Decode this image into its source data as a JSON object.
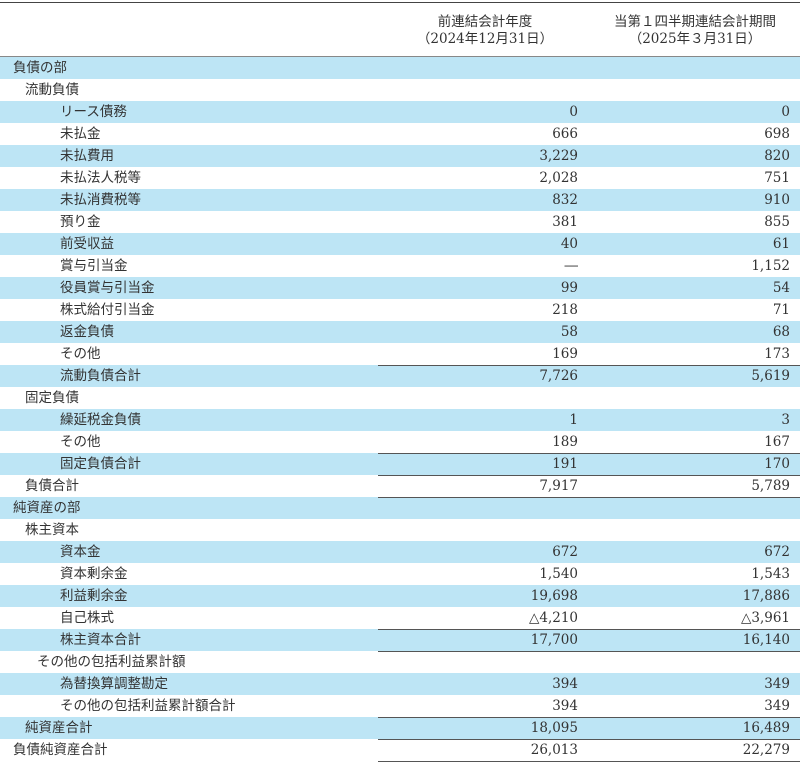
{
  "header": {
    "col1_line1": "前連結会計年度",
    "col1_line2": "（2024年12月31日）",
    "col2_line1": "当第１四半期連結会計期間",
    "col2_line2": "（2025年３月31日）"
  },
  "rows": [
    {
      "label": "負債の部",
      "indent": 0,
      "v1": "",
      "v2": ""
    },
    {
      "label": "流動負債",
      "indent": 1,
      "v1": "",
      "v2": ""
    },
    {
      "label": "リース債務",
      "indent": 2,
      "v1": "0",
      "v2": "0"
    },
    {
      "label": "未払金",
      "indent": 2,
      "v1": "666",
      "v2": "698"
    },
    {
      "label": "未払費用",
      "indent": 2,
      "v1": "3,229",
      "v2": "820"
    },
    {
      "label": "未払法人税等",
      "indent": 2,
      "v1": "2,028",
      "v2": "751"
    },
    {
      "label": "未払消費税等",
      "indent": 2,
      "v1": "832",
      "v2": "910"
    },
    {
      "label": "預り金",
      "indent": 2,
      "v1": "381",
      "v2": "855"
    },
    {
      "label": "前受収益",
      "indent": 2,
      "v1": "40",
      "v2": "61"
    },
    {
      "label": "賞与引当金",
      "indent": 2,
      "v1": "―",
      "v2": "1,152"
    },
    {
      "label": "役員賞与引当金",
      "indent": 2,
      "v1": "99",
      "v2": "54"
    },
    {
      "label": "株式給付引当金",
      "indent": 2,
      "v1": "218",
      "v2": "71"
    },
    {
      "label": "返金負債",
      "indent": 2,
      "v1": "58",
      "v2": "68"
    },
    {
      "label": "その他",
      "indent": 2,
      "v1": "169",
      "v2": "173"
    },
    {
      "label": "流動負債合計",
      "indent": 2,
      "v1": "7,726",
      "v2": "5,619",
      "total": true
    },
    {
      "label": "固定負債",
      "indent": 1,
      "v1": "",
      "v2": ""
    },
    {
      "label": "繰延税金負債",
      "indent": 2,
      "v1": "1",
      "v2": "3"
    },
    {
      "label": "その他",
      "indent": 2,
      "v1": "189",
      "v2": "167"
    },
    {
      "label": "固定負債合計",
      "indent": 2,
      "v1": "191",
      "v2": "170",
      "total": true
    },
    {
      "label": "負債合計",
      "indent": 1,
      "v1": "7,917",
      "v2": "5,789",
      "total": true
    },
    {
      "label": "純資産の部",
      "indent": 0,
      "v1": "",
      "v2": "",
      "total": true
    },
    {
      "label": "株主資本",
      "indent": 1,
      "v1": "",
      "v2": ""
    },
    {
      "label": "資本金",
      "indent": 2,
      "v1": "672",
      "v2": "672"
    },
    {
      "label": "資本剰余金",
      "indent": 2,
      "v1": "1,540",
      "v2": "1,543"
    },
    {
      "label": "利益剰余金",
      "indent": 2,
      "v1": "19,698",
      "v2": "17,886"
    },
    {
      "label": "自己株式",
      "indent": 2,
      "v1": "△4,210",
      "v2": "△3,961"
    },
    {
      "label": "株主資本合計",
      "indent": 2,
      "v1": "17,700",
      "v2": "16,140",
      "total": true
    },
    {
      "label": "その他の包括利益累計額",
      "indent": 3,
      "v1": "",
      "v2": "",
      "total": true
    },
    {
      "label": "為替換算調整勘定",
      "indent": 2,
      "v1": "394",
      "v2": "349"
    },
    {
      "label": "その他の包括利益累計額合計",
      "indent": 2,
      "v1": "394",
      "v2": "349"
    },
    {
      "label": "純資産合計",
      "indent": 1,
      "v1": "18,095",
      "v2": "16,489",
      "total": true
    },
    {
      "label": "負債純資産合計",
      "indent": 0,
      "v1": "26,013",
      "v2": "22,279",
      "total": true
    }
  ],
  "colors": {
    "row_stripe": "#bde5f5",
    "text": "#333333"
  }
}
